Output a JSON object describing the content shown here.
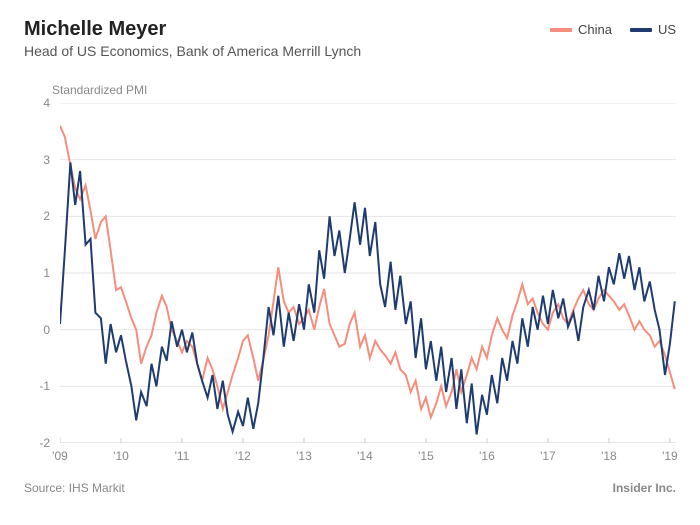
{
  "title": "Michelle Meyer",
  "subtitle": "Head of US Economics, Bank of America Merrill Lynch",
  "y_axis_title": "Standardized PMI",
  "source": "Source: IHS Markit",
  "brand": "Insider Inc.",
  "chart": {
    "type": "line",
    "background_color": "#ffffff",
    "grid_color": "#e6e6e6",
    "axis_text_color": "#888888",
    "line_width": 2,
    "ylim": [
      -2,
      4
    ],
    "yticks": [
      -2,
      -1,
      0,
      1,
      2,
      3,
      4
    ],
    "xlim": [
      2009,
      2019.1
    ],
    "xticks": [
      2009,
      2010,
      2011,
      2012,
      2013,
      2014,
      2015,
      2016,
      2017,
      2018,
      2019
    ],
    "xtick_labels": [
      "'09",
      "'10",
      "'11",
      "'12",
      "'13",
      "'14",
      "'15",
      "'16",
      "'17",
      "'18",
      "'19"
    ],
    "legend": [
      {
        "label": "China",
        "color": "#f58e7c"
      },
      {
        "label": "US",
        "color": "#1f3c70"
      }
    ],
    "series": [
      {
        "name": "China",
        "color": "#f58e7c",
        "x": [
          2009.0,
          2009.08,
          2009.17,
          2009.25,
          2009.33,
          2009.42,
          2009.5,
          2009.58,
          2009.67,
          2009.75,
          2009.83,
          2009.92,
          2010.0,
          2010.08,
          2010.17,
          2010.25,
          2010.33,
          2010.42,
          2010.5,
          2010.58,
          2010.67,
          2010.75,
          2010.83,
          2010.92,
          2011.0,
          2011.08,
          2011.17,
          2011.25,
          2011.33,
          2011.42,
          2011.5,
          2011.58,
          2011.67,
          2011.75,
          2011.83,
          2011.92,
          2012.0,
          2012.08,
          2012.17,
          2012.25,
          2012.33,
          2012.42,
          2012.5,
          2012.58,
          2012.67,
          2012.75,
          2012.83,
          2012.92,
          2013.0,
          2013.08,
          2013.17,
          2013.25,
          2013.33,
          2013.42,
          2013.5,
          2013.58,
          2013.67,
          2013.75,
          2013.83,
          2013.92,
          2014.0,
          2014.08,
          2014.17,
          2014.25,
          2014.33,
          2014.42,
          2014.5,
          2014.58,
          2014.67,
          2014.75,
          2014.83,
          2014.92,
          2015.0,
          2015.08,
          2015.17,
          2015.25,
          2015.33,
          2015.42,
          2015.5,
          2015.58,
          2015.67,
          2015.75,
          2015.83,
          2015.92,
          2016.0,
          2016.08,
          2016.17,
          2016.25,
          2016.33,
          2016.42,
          2016.5,
          2016.58,
          2016.67,
          2016.75,
          2016.83,
          2016.92,
          2017.0,
          2017.08,
          2017.17,
          2017.25,
          2017.33,
          2017.42,
          2017.5,
          2017.58,
          2017.67,
          2017.75,
          2017.83,
          2017.92,
          2018.0,
          2018.08,
          2018.17,
          2018.25,
          2018.33,
          2018.42,
          2018.5,
          2018.58,
          2018.67,
          2018.75,
          2018.83,
          2018.92,
          2019.0,
          2019.08
        ],
        "y": [
          3.6,
          3.4,
          2.9,
          2.5,
          2.3,
          2.55,
          2.1,
          1.6,
          1.9,
          2.0,
          1.4,
          0.7,
          0.75,
          0.5,
          0.2,
          0.0,
          -0.6,
          -0.3,
          -0.1,
          0.3,
          0.6,
          0.4,
          0.0,
          -0.2,
          -0.4,
          -0.2,
          -0.3,
          -0.6,
          -0.9,
          -0.5,
          -0.7,
          -1.0,
          -1.4,
          -1.1,
          -0.8,
          -0.5,
          -0.2,
          -0.1,
          -0.5,
          -0.9,
          -0.55,
          -0.1,
          0.5,
          1.1,
          0.5,
          0.3,
          0.4,
          0.1,
          0.2,
          0.35,
          0.0,
          0.4,
          0.72,
          0.1,
          -0.1,
          -0.3,
          -0.25,
          0.1,
          0.3,
          -0.3,
          -0.1,
          -0.5,
          -0.2,
          -0.35,
          -0.45,
          -0.6,
          -0.4,
          -0.7,
          -0.8,
          -1.1,
          -0.9,
          -1.4,
          -1.2,
          -1.55,
          -1.3,
          -1.0,
          -1.35,
          -1.1,
          -0.7,
          -1.1,
          -0.8,
          -0.5,
          -0.7,
          -0.3,
          -0.5,
          -0.1,
          0.2,
          0.0,
          -0.15,
          0.25,
          0.5,
          0.8,
          0.45,
          0.55,
          0.3,
          0.1,
          0.0,
          0.3,
          0.45,
          0.2,
          0.1,
          0.35,
          0.55,
          0.7,
          0.45,
          0.35,
          0.55,
          0.7,
          0.6,
          0.5,
          0.35,
          0.45,
          0.25,
          0.0,
          0.15,
          0.0,
          -0.1,
          -0.3,
          -0.2,
          -0.45,
          -0.75,
          -1.05
        ]
      },
      {
        "name": "US",
        "color": "#1f3c70",
        "x": [
          2009.0,
          2009.08,
          2009.17,
          2009.25,
          2009.33,
          2009.42,
          2009.5,
          2009.58,
          2009.67,
          2009.75,
          2009.83,
          2009.92,
          2010.0,
          2010.08,
          2010.17,
          2010.25,
          2010.33,
          2010.42,
          2010.5,
          2010.58,
          2010.67,
          2010.75,
          2010.83,
          2010.92,
          2011.0,
          2011.08,
          2011.17,
          2011.25,
          2011.33,
          2011.42,
          2011.5,
          2011.58,
          2011.67,
          2011.75,
          2011.83,
          2011.92,
          2012.0,
          2012.08,
          2012.17,
          2012.25,
          2012.33,
          2012.42,
          2012.5,
          2012.58,
          2012.67,
          2012.75,
          2012.83,
          2012.92,
          2013.0,
          2013.08,
          2013.17,
          2013.25,
          2013.33,
          2013.42,
          2013.5,
          2013.58,
          2013.67,
          2013.75,
          2013.83,
          2013.92,
          2014.0,
          2014.08,
          2014.17,
          2014.25,
          2014.33,
          2014.42,
          2014.5,
          2014.58,
          2014.67,
          2014.75,
          2014.83,
          2014.92,
          2015.0,
          2015.08,
          2015.17,
          2015.25,
          2015.33,
          2015.42,
          2015.5,
          2015.58,
          2015.67,
          2015.75,
          2015.83,
          2015.92,
          2016.0,
          2016.08,
          2016.17,
          2016.25,
          2016.33,
          2016.42,
          2016.5,
          2016.58,
          2016.67,
          2016.75,
          2016.83,
          2016.92,
          2017.0,
          2017.08,
          2017.17,
          2017.25,
          2017.33,
          2017.42,
          2017.5,
          2017.58,
          2017.67,
          2017.75,
          2017.83,
          2017.92,
          2018.0,
          2018.08,
          2018.17,
          2018.25,
          2018.33,
          2018.42,
          2018.5,
          2018.58,
          2018.67,
          2018.75,
          2018.83,
          2018.92,
          2019.0,
          2019.08
        ],
        "y": [
          0.1,
          1.4,
          2.95,
          2.2,
          2.8,
          1.5,
          1.6,
          0.3,
          0.2,
          -0.6,
          0.1,
          -0.4,
          -0.1,
          -0.55,
          -1.0,
          -1.6,
          -1.1,
          -1.35,
          -0.6,
          -1.0,
          -0.3,
          -0.55,
          0.15,
          -0.3,
          0.0,
          -0.4,
          -0.05,
          -0.6,
          -0.9,
          -1.2,
          -0.8,
          -1.4,
          -0.9,
          -1.5,
          -1.8,
          -1.45,
          -1.7,
          -1.2,
          -1.75,
          -1.3,
          -0.55,
          0.4,
          -0.1,
          0.6,
          -0.3,
          0.3,
          -0.2,
          0.45,
          0.0,
          0.8,
          0.3,
          1.4,
          0.9,
          2.0,
          1.3,
          1.75,
          1.0,
          1.6,
          2.25,
          1.5,
          2.15,
          1.3,
          1.9,
          0.8,
          0.4,
          1.2,
          0.35,
          0.95,
          0.1,
          0.5,
          -0.5,
          0.2,
          -0.7,
          -0.2,
          -0.9,
          -0.3,
          -1.1,
          -0.5,
          -1.4,
          -0.7,
          -1.65,
          -0.95,
          -1.85,
          -1.15,
          -1.5,
          -0.8,
          -1.3,
          -0.5,
          -0.9,
          -0.2,
          -0.6,
          0.2,
          -0.3,
          0.4,
          0.0,
          0.6,
          0.1,
          0.7,
          0.2,
          0.55,
          0.05,
          0.3,
          -0.2,
          0.4,
          0.7,
          0.35,
          0.95,
          0.5,
          1.1,
          0.8,
          1.35,
          0.9,
          1.3,
          0.7,
          1.1,
          0.5,
          0.85,
          0.35,
          0.0,
          -0.8,
          -0.25,
          0.5
        ]
      }
    ]
  }
}
